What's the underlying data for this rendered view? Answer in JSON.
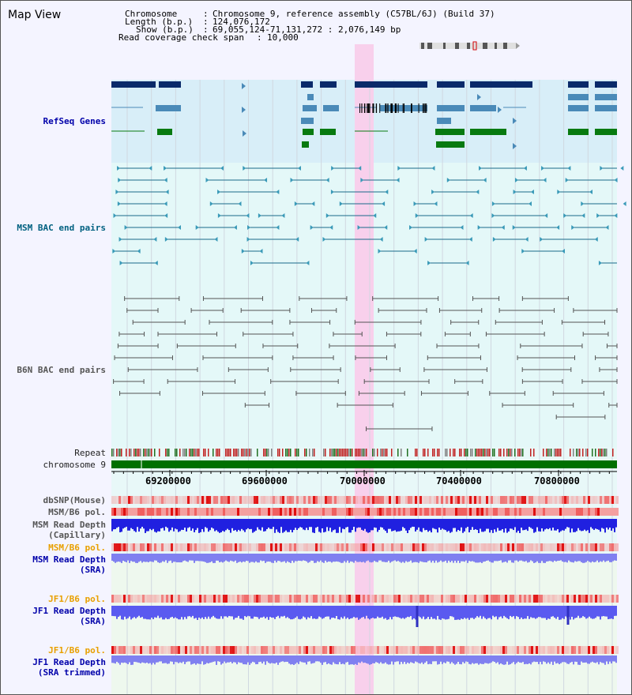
{
  "title": "Map View",
  "header": {
    "chromosome_label": "Chromosome",
    "chromosome_value": "Chromosome 9, reference assembly (C57BL/6J) (Build 37)",
    "length_label": "Length (b.p.)",
    "length_value": "124,076,172",
    "show_label": "Show (b.p.)",
    "show_value": "69,055,124-71,131,272 : 2,076,149 bp",
    "coverage_label": "Read coverage check span",
    "coverage_value": "10,000"
  },
  "tracks": {
    "refseq": "RefSeq Genes",
    "msm_bac": "MSM BAC end pairs",
    "b6n_bac": "B6N BAC end pairs",
    "repeat": "Repeat",
    "chromosome": "chromosome 9",
    "dbsnp": "dbSNP(Mouse)",
    "msm_b6_pol_1": "MSM/B6 pol.",
    "msm_read_depth_cap_1": "MSM Read Depth",
    "msm_read_depth_cap_2": "(Capillary)",
    "msm_b6_pol_2": "MSM/B6 pol.",
    "msm_read_depth_sra_1": "MSM Read Depth",
    "msm_read_depth_sra_2": "(SRA)",
    "jf1_b6_pol_1": "JF1/B6 pol.",
    "jf1_read_depth_sra_1": "JF1 Read Depth",
    "jf1_read_depth_sra_2": "(SRA)",
    "jf1_b6_pol_2": "JF1/B6 pol.",
    "jf1_read_depth_trim_1": "JF1 Read Depth",
    "jf1_read_depth_trim_2": "(SRA trimmed)"
  },
  "ruler": {
    "ticks": [
      "69200000",
      "69600000",
      "70000000",
      "70400000",
      "70800000"
    ]
  },
  "colors": {
    "refseq_bg": "#d8eef8",
    "bac_bg": "#e4f8f8",
    "highlight": "#f8d0ec",
    "gene_dark": "#0a2a6a",
    "gene_mid": "#4a8ab8",
    "gene_green": "#087a10",
    "chromosome_bar": "#007000",
    "snp_pink": "#f08080",
    "depth_blue": "#2020e0",
    "depth_light": "#8080f0"
  }
}
